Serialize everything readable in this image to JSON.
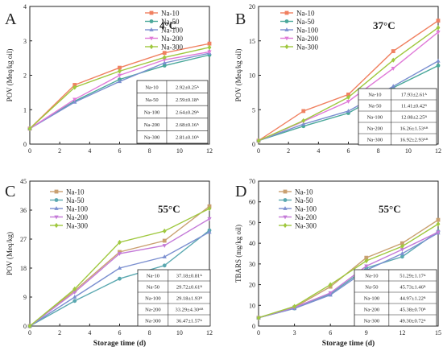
{
  "chart_data": [
    {
      "type": "line",
      "panel_label": "A",
      "annotation": "4°C",
      "xlabel": "",
      "ylabel": "POV (Meq/kg oil)",
      "xlim": [
        0,
        12
      ],
      "ylim": [
        0,
        4
      ],
      "x_ticks": [
        "0",
        "2",
        "4",
        "6",
        "8",
        "10",
        "12"
      ],
      "y_ticks": [
        "0",
        "1",
        "2",
        "3",
        "4"
      ],
      "x": [
        0,
        3,
        6,
        9,
        12
      ],
      "series": [
        {
          "name": "Na-10",
          "color": "#f08060",
          "marker": "square",
          "values": [
            0.45,
            1.72,
            2.22,
            2.65,
            2.92
          ]
        },
        {
          "name": "Na-50",
          "color": "#4aa89a",
          "marker": "circle",
          "values": [
            0.45,
            1.25,
            1.88,
            2.28,
            2.59
          ]
        },
        {
          "name": "Na-100",
          "color": "#7b8fd0",
          "marker": "triangle",
          "values": [
            0.45,
            1.22,
            1.82,
            2.36,
            2.64
          ]
        },
        {
          "name": "Na-200",
          "color": "#e07ad8",
          "marker": "triangle-down",
          "values": [
            0.45,
            1.3,
            2.0,
            2.45,
            2.68
          ]
        },
        {
          "name": "Na-300",
          "color": "#9fc83e",
          "marker": "diamond",
          "values": [
            0.45,
            1.65,
            2.12,
            2.52,
            2.81
          ]
        }
      ],
      "table": [
        [
          "Na-10",
          "2.92±0.25ᴬ"
        ],
        [
          "Na-50",
          "2.59±0.18ᴬ"
        ],
        [
          "Na-100",
          "2.64±0.29ᴬ"
        ],
        [
          "Na-200",
          "2.68±0.16ᴬ"
        ],
        [
          "Na-300",
          "2.81±0.10ᴬ"
        ]
      ],
      "grid": false,
      "legend": "top-right"
    },
    {
      "type": "line",
      "panel_label": "B",
      "annotation": "37°C",
      "xlabel": "",
      "ylabel": "POV (Meq/kg oil)",
      "xlim": [
        0,
        12
      ],
      "ylim": [
        0,
        20
      ],
      "x_ticks": [
        "0",
        "2",
        "4",
        "6",
        "8",
        "10",
        "12"
      ],
      "y_ticks": [
        "0",
        "5",
        "10",
        "15",
        "20"
      ],
      "x": [
        0,
        3,
        6,
        9,
        12
      ],
      "series": [
        {
          "name": "Na-10",
          "color": "#f08060",
          "marker": "square",
          "values": [
            0.5,
            4.8,
            7.2,
            13.5,
            17.93
          ]
        },
        {
          "name": "Na-50",
          "color": "#4aa89a",
          "marker": "circle",
          "values": [
            0.5,
            2.6,
            4.5,
            8.2,
            11.41
          ]
        },
        {
          "name": "Na-100",
          "color": "#7b8fd0",
          "marker": "triangle",
          "values": [
            0.5,
            2.9,
            4.8,
            8.4,
            12.08
          ]
        },
        {
          "name": "Na-200",
          "color": "#e07ad8",
          "marker": "triangle-down",
          "values": [
            0.5,
            3.3,
            6.2,
            11.0,
            16.26
          ]
        },
        {
          "name": "Na-300",
          "color": "#9fc83e",
          "marker": "diamond",
          "values": [
            0.5,
            3.4,
            6.8,
            12.2,
            16.92
          ]
        }
      ],
      "table": [
        [
          "Na-10",
          "17.93±2.61ᴬ"
        ],
        [
          "Na-50",
          "11.41±0.42ᴮ"
        ],
        [
          "Na-100",
          "12.08±2.25ᴮ"
        ],
        [
          "Na-200",
          "16.26±1.53ᴬᴮ"
        ],
        [
          "Na-300",
          "16.92±2.93ᴬᴮ"
        ]
      ],
      "grid": false,
      "legend": "top-left"
    },
    {
      "type": "line",
      "panel_label": "C",
      "annotation": "55°C",
      "xlabel": "Storage time (d)",
      "ylabel": "POV (Meq/kg)",
      "xlim": [
        0,
        12
      ],
      "ylim": [
        0,
        45
      ],
      "x_ticks": [
        "0",
        "2",
        "4",
        "6",
        "8",
        "10",
        "12"
      ],
      "y_ticks": [
        "0",
        "9",
        "18",
        "27",
        "36",
        "45"
      ],
      "x": [
        0,
        3,
        6,
        9,
        12
      ],
      "series": [
        {
          "name": "Na-10",
          "color": "#c9a070",
          "marker": "square",
          "values": [
            0,
            11.0,
            23.0,
            26.5,
            37.18
          ]
        },
        {
          "name": "Na-50",
          "color": "#5aa8b0",
          "marker": "circle",
          "values": [
            0,
            7.8,
            14.7,
            18.8,
            29.72
          ]
        },
        {
          "name": "Na-100",
          "color": "#7b8fd0",
          "marker": "triangle",
          "values": [
            0,
            9.0,
            18.0,
            21.5,
            29.18
          ]
        },
        {
          "name": "Na-200",
          "color": "#c47ad8",
          "marker": "triangle-down",
          "values": [
            0,
            10.5,
            22.5,
            25.0,
            33.29
          ]
        },
        {
          "name": "Na-300",
          "color": "#9fc83e",
          "marker": "diamond",
          "values": [
            0,
            11.5,
            26.0,
            29.5,
            36.47
          ]
        }
      ],
      "table": [
        [
          "Na-10",
          "37.18±0.81ᴬ"
        ],
        [
          "Na-50",
          "29.72±0.61ᴮ"
        ],
        [
          "Na-100",
          "29.18±1.93ᴮ"
        ],
        [
          "Na-200",
          "33.29±4.30ᴬᴮ"
        ],
        [
          "Na-300",
          "36.47±1.57ᴬ"
        ]
      ],
      "grid": false,
      "legend": "top-left"
    },
    {
      "type": "line",
      "panel_label": "D",
      "annotation": "55°C",
      "xlabel": "Storage time (d)",
      "ylabel": "TBARS (mg/kg oil)",
      "xlim": [
        0,
        15
      ],
      "ylim": [
        0,
        70
      ],
      "x_ticks": [
        "0",
        "3",
        "6",
        "9",
        "12",
        "15"
      ],
      "y_ticks": [
        "0",
        "10",
        "20",
        "30",
        "40",
        "50",
        "60",
        "70"
      ],
      "x": [
        0,
        3,
        6,
        9,
        12,
        15
      ],
      "series": [
        {
          "name": "Na-10",
          "color": "#c9a070",
          "marker": "square",
          "values": [
            4.0,
            9.0,
            19.0,
            33.0,
            40.0,
            51.29
          ]
        },
        {
          "name": "Na-50",
          "color": "#5aa8b0",
          "marker": "circle",
          "values": [
            4.0,
            8.5,
            15.5,
            28.0,
            33.5,
            45.73
          ]
        },
        {
          "name": "Na-100",
          "color": "#7b8fd0",
          "marker": "triangle",
          "values": [
            4.0,
            8.5,
            15.0,
            27.0,
            35.0,
            44.97
          ]
        },
        {
          "name": "Na-200",
          "color": "#c47ad8",
          "marker": "triangle-down",
          "values": [
            4.0,
            9.0,
            16.0,
            29.0,
            37.0,
            45.38
          ]
        },
        {
          "name": "Na-300",
          "color": "#9fc83e",
          "marker": "diamond",
          "values": [
            4.0,
            9.5,
            20.0,
            31.5,
            38.5,
            49.3
          ]
        }
      ],
      "table": [
        [
          "Na-10",
          "51.29±1.17ᴬ"
        ],
        [
          "Na-50",
          "45.73±1.46ᴮ"
        ],
        [
          "Na-100",
          "44.97±1.22ᴮ"
        ],
        [
          "Na-200",
          "45.38±0.70ᴮ"
        ],
        [
          "Na-300",
          "49.30±0.72ᴬ"
        ]
      ],
      "grid": false,
      "legend": "top-left"
    }
  ]
}
